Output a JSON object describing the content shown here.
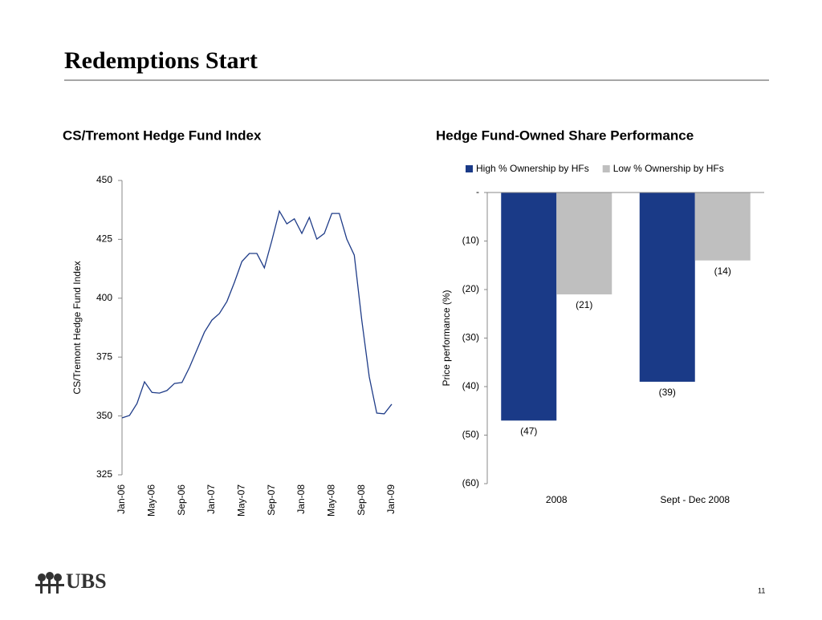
{
  "title": "Redemptions Start",
  "logo": "UBS",
  "page_number": "11",
  "chart_data": [
    {
      "type": "line",
      "title": "CS/Tremont Hedge Fund Index",
      "y_label": "CS/Tremont Hedge Fund Index",
      "color": "#1f3c88",
      "categories": [
        "Jan-06",
        null,
        null,
        null,
        "May-06",
        null,
        null,
        null,
        "Sep-06",
        null,
        null,
        null,
        "Jan-07",
        null,
        null,
        null,
        "May-07",
        null,
        null,
        null,
        "Sep-07",
        null,
        null,
        null,
        "Jan-08",
        null,
        null,
        null,
        "May-08",
        null,
        null,
        null,
        "Sep-08",
        null,
        null,
        null,
        "Jan-09"
      ],
      "values": [
        349.2,
        350.2,
        355.3,
        364.5,
        360,
        359.7,
        360.8,
        363.8,
        364.2,
        370.6,
        378.1,
        385.6,
        390.7,
        393.5,
        398.6,
        406.7,
        415.6,
        419,
        419,
        412.9,
        424.5,
        437,
        431.6,
        433.7,
        427.5,
        434.3,
        425.1,
        427.5,
        436,
        436,
        425.1,
        418.3,
        390.7,
        366.6,
        351.2,
        350.9,
        355
      ],
      "ylim": [
        325,
        450
      ],
      "yticks": [
        325,
        350,
        375,
        400,
        425,
        450
      ]
    },
    {
      "type": "bar",
      "title": "Hedge Fund-Owned Share Performance",
      "y_label": "Price performance (%)",
      "categories": [
        "2008",
        "Sept - Dec 2008"
      ],
      "series": [
        {
          "name": "High % Ownership by HFs",
          "color": "#1a3a87",
          "values": [
            -47,
            -39
          ],
          "value_labels": [
            "(47)",
            "(39)"
          ]
        },
        {
          "name": "Low % Ownership by HFs",
          "color": "#bfbfbf",
          "values": [
            -21,
            -14
          ],
          "value_labels": [
            "(21)",
            "(14)"
          ]
        }
      ],
      "ylim": [
        -60,
        0
      ],
      "yticks": [
        {
          "value": 0,
          "label": "-"
        },
        {
          "value": -10,
          "label": "(10)"
        },
        {
          "value": -20,
          "label": "(20)"
        },
        {
          "value": -30,
          "label": "(30)"
        },
        {
          "value": -40,
          "label": "(40)"
        },
        {
          "value": -50,
          "label": "(50)"
        },
        {
          "value": -60,
          "label": "(60)"
        }
      ],
      "legend": "top"
    }
  ]
}
